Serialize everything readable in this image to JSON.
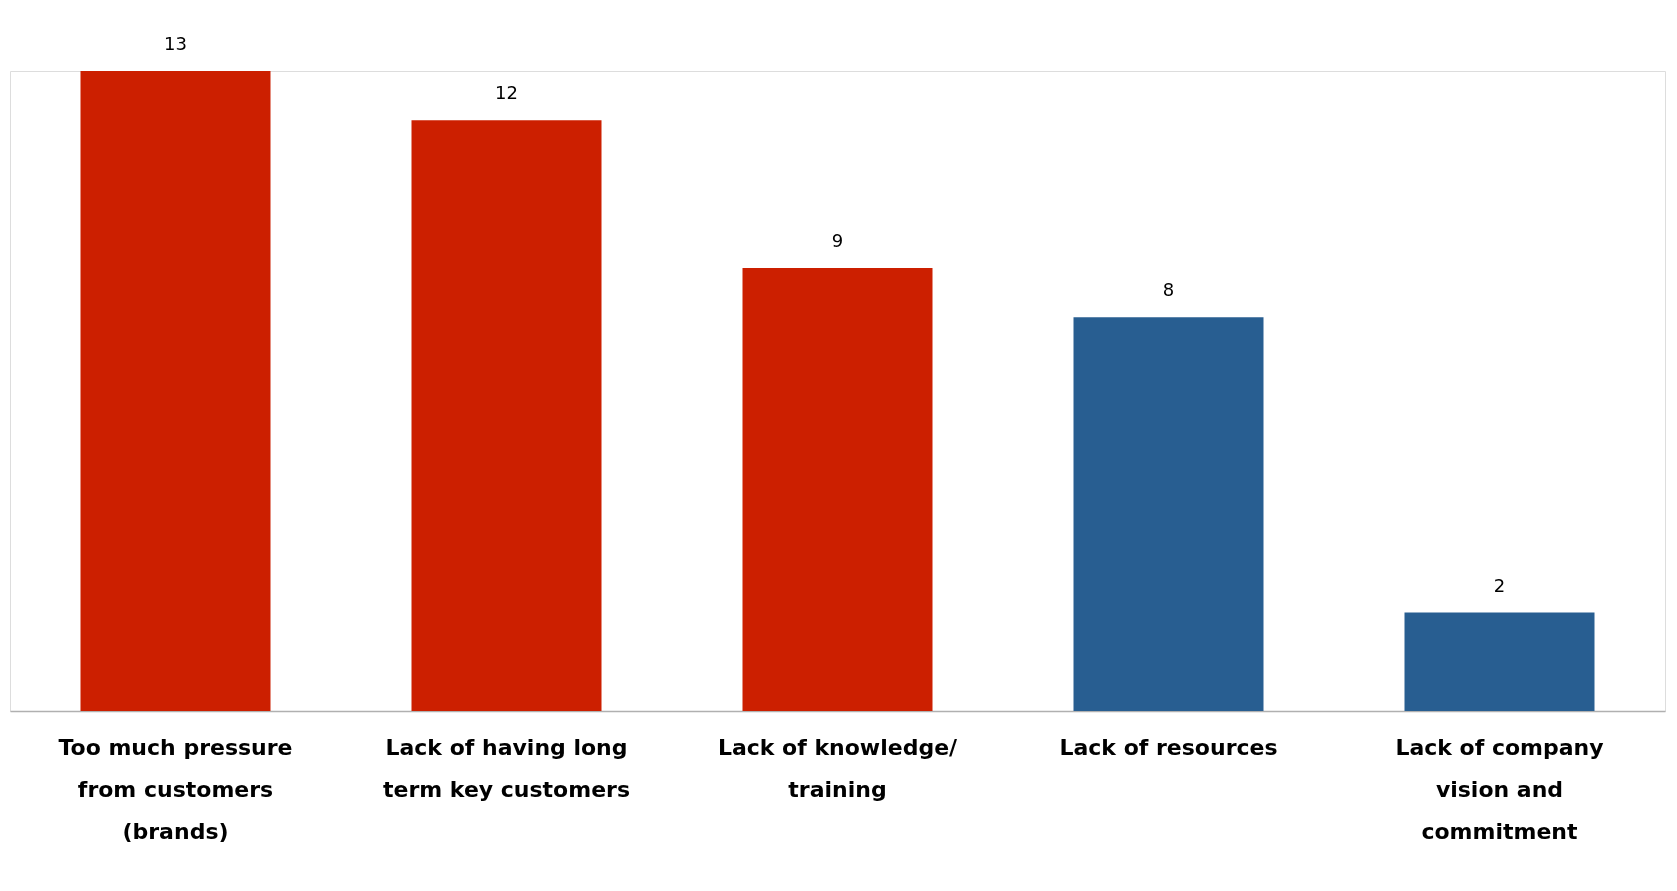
{
  "chart_data": {
    "type": "bar",
    "categories": [
      "Too much pressure from customers (brands)",
      "Lack of having long term key customers",
      "Lack of knowledge/ training",
      "Lack of resources",
      "Lack of company vision and commitment"
    ],
    "values": [
      13,
      12,
      9,
      8,
      2
    ],
    "colors": [
      "#cc1f00",
      "#cc1f00",
      "#cc1f00",
      "#285e91",
      "#285e91"
    ],
    "data_labels": true
  }
}
